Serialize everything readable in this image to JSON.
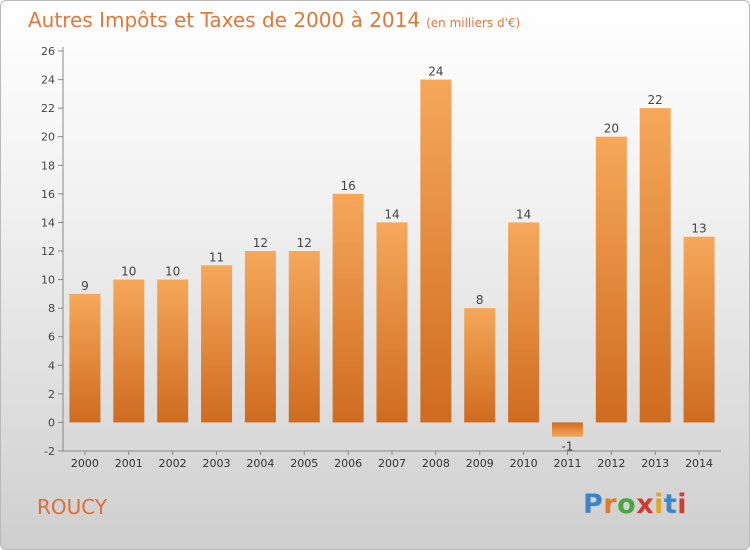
{
  "header": {
    "title": "Autres Impôts et Taxes de 2000 à 2014",
    "unit": "(en milliers d'€)"
  },
  "footer": {
    "commune": "ROUCY",
    "logo_text": "Proxiti"
  },
  "colors": {
    "bar_light": "#f6a85a",
    "bar_dark": "#cf6b1f",
    "accent": "#e0783a"
  },
  "chart_data": {
    "type": "bar",
    "title": "Autres Impôts et Taxes de 2000 à 2014",
    "subtitle": "(en milliers d'€)",
    "xlabel": "",
    "ylabel": "",
    "categories": [
      "2000",
      "2001",
      "2002",
      "2003",
      "2004",
      "2005",
      "2006",
      "2007",
      "2008",
      "2009",
      "2010",
      "2011",
      "2012",
      "2013",
      "2014"
    ],
    "values": [
      9,
      10,
      10,
      11,
      12,
      12,
      16,
      14,
      24,
      8,
      14,
      -1,
      20,
      22,
      13
    ],
    "ylim": [
      -2,
      26
    ],
    "yticks": [
      -2,
      0,
      2,
      4,
      6,
      8,
      10,
      12,
      14,
      16,
      18,
      20,
      22,
      24,
      26
    ],
    "grid": false,
    "legend": "none"
  }
}
